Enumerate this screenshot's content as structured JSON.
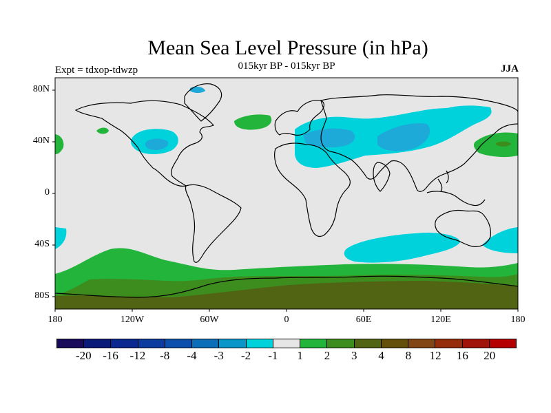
{
  "title": "Mean Sea Level Pressure (in hPa)",
  "subtitle": "015kyr BP - 015kyr BP",
  "expt_label": "Expt = tdxop-tdwzp",
  "season": "JJA",
  "lat_labels": [
    "80N",
    "40N",
    "0",
    "40S",
    "80S"
  ],
  "lon_labels": [
    "180",
    "120W",
    "60W",
    "0",
    "60E",
    "120E",
    "180"
  ],
  "legend": {
    "colors": [
      "#1a0a5c",
      "#0a1a78",
      "#0a2890",
      "#0a3ca0",
      "#0a50ac",
      "#0a6eb8",
      "#0a96c8",
      "#00d2dc",
      "#e6e6e6",
      "#23b43c",
      "#3c8c1e",
      "#506414",
      "#64500a",
      "#824614",
      "#962d0a",
      "#a0140a",
      "#b40000"
    ],
    "labels": [
      "-20",
      "-16",
      "-12",
      "-8",
      "-4",
      "-3",
      "-2",
      "-1",
      "1",
      "2",
      "3",
      "4",
      "8",
      "12",
      "16",
      "20"
    ]
  },
  "colors": {
    "background": "#e6e6e6",
    "cyan": "#00d2dc",
    "light_blue": "#1eaad8",
    "blue": "#0a96c8",
    "light_green": "#23b43c",
    "mid_green": "#3c8c1e",
    "dark_green": "#506414"
  }
}
